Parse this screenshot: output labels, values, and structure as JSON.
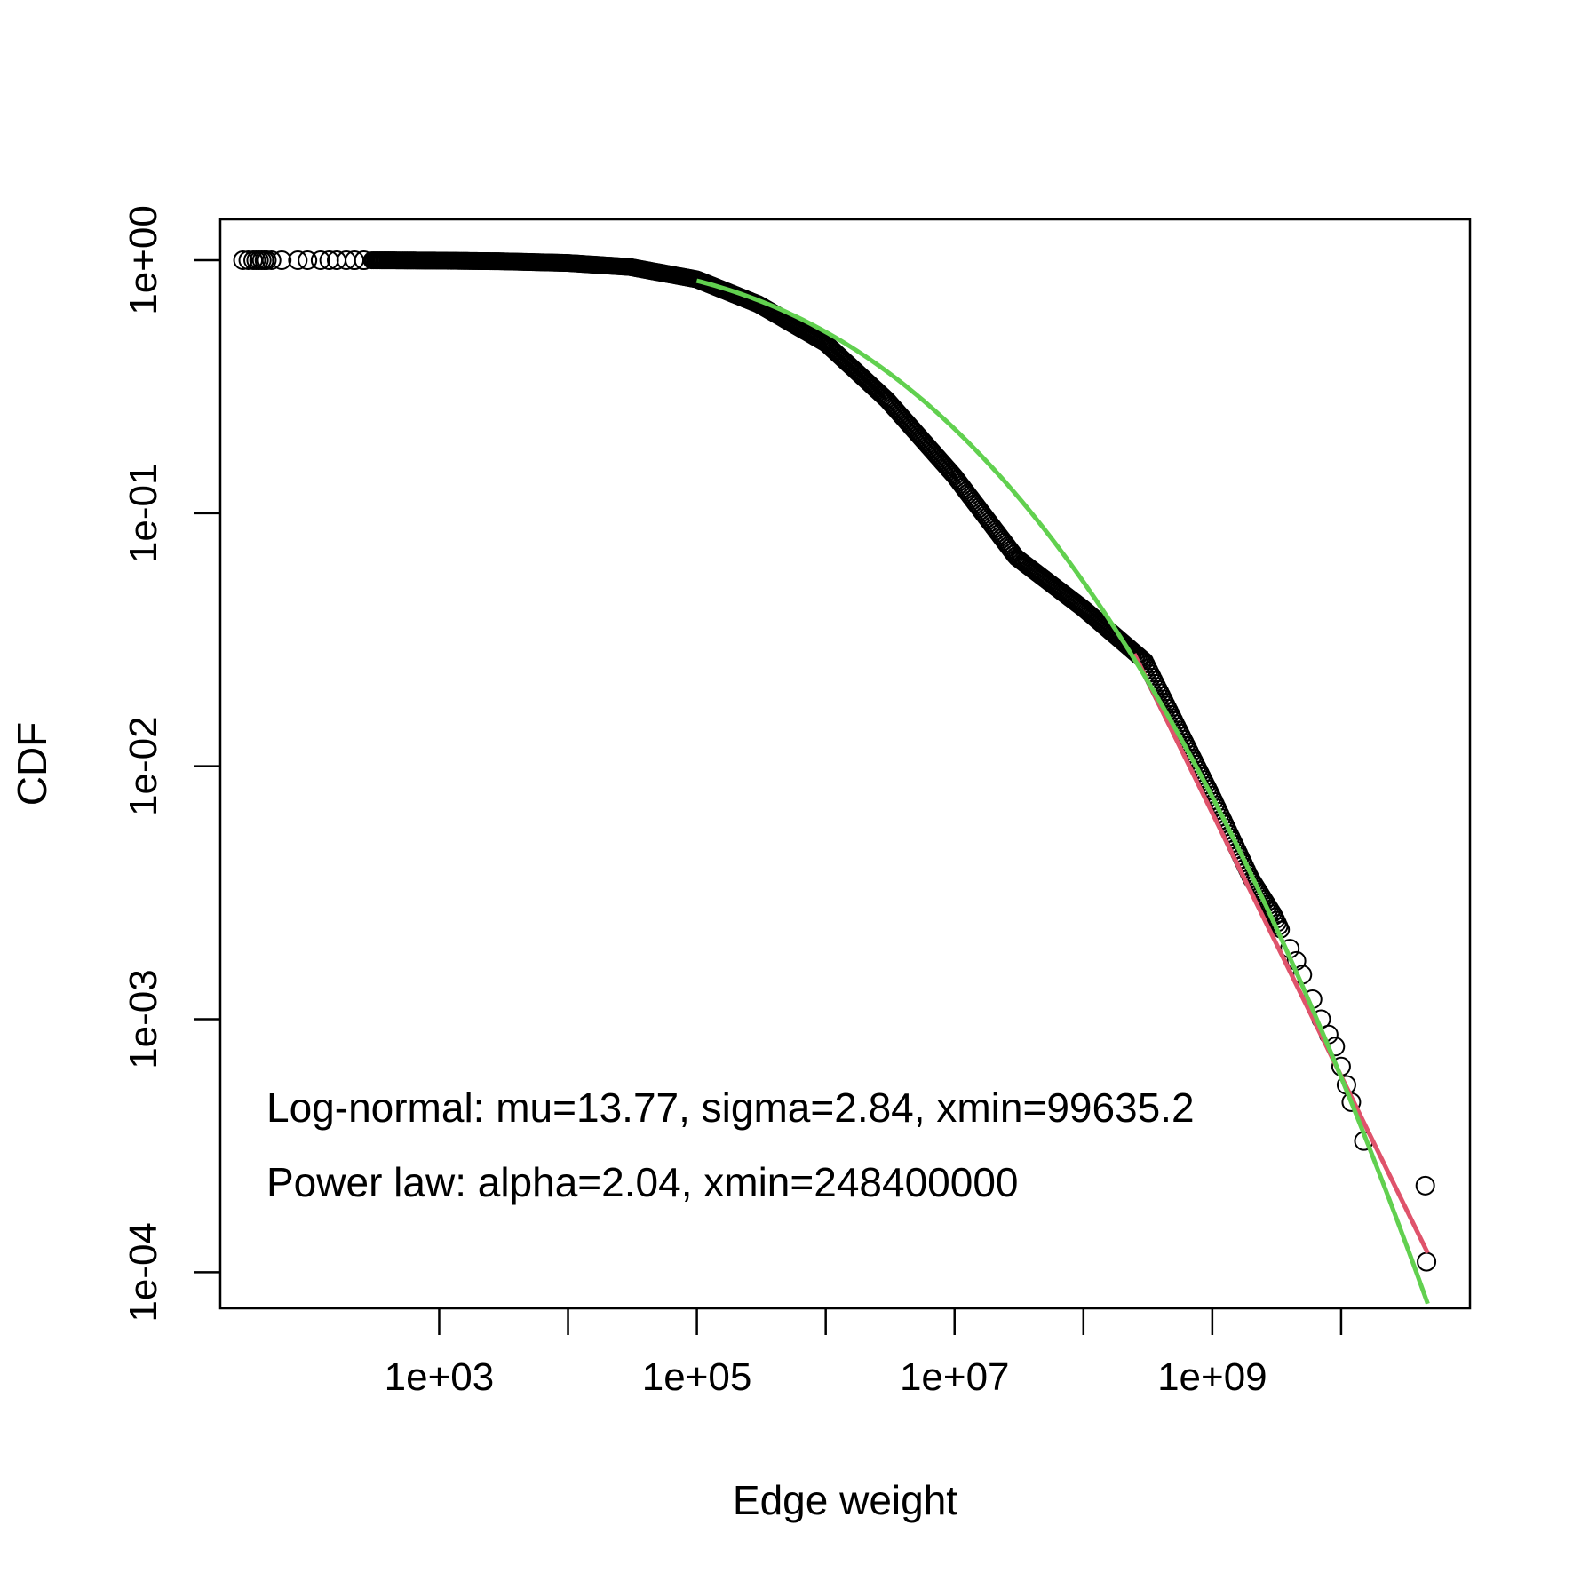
{
  "chart_data": {
    "type": "scatter",
    "xlabel": "Edge weight",
    "ylabel": "CDF",
    "x_scale": "log10",
    "y_scale": "log10",
    "xlim": [
      20,
      100000000000
    ],
    "ylim": [
      7.2e-05,
      1.45
    ],
    "x_ticks": [
      {
        "value": 1000,
        "label": "1e+03"
      },
      {
        "value": 10000,
        "label": ""
      },
      {
        "value": 100000,
        "label": "1e+05"
      },
      {
        "value": 1000000,
        "label": ""
      },
      {
        "value": 10000000,
        "label": "1e+07"
      },
      {
        "value": 100000000,
        "label": ""
      },
      {
        "value": 1000000000,
        "label": "1e+09"
      },
      {
        "value": 10000000000,
        "label": ""
      }
    ],
    "y_ticks": [
      {
        "value": 1,
        "label": "1e+00"
      },
      {
        "value": 0.1,
        "label": "1e-01"
      },
      {
        "value": 0.01,
        "label": "1e-02"
      },
      {
        "value": 0.001,
        "label": "1e-03"
      },
      {
        "value": 0.0001,
        "label": "1e-04"
      }
    ],
    "series": [
      {
        "kind": "points",
        "marker": "open-circle",
        "color": "#000000",
        "points": [
          [
            30,
            1.0
          ],
          [
            33,
            1.0
          ],
          [
            36,
            1.0
          ],
          [
            38,
            1.0
          ],
          [
            40,
            1.0
          ],
          [
            42,
            1.0
          ],
          [
            44,
            1.0
          ],
          [
            46,
            1.0
          ],
          [
            50,
            1.0
          ],
          [
            60,
            0.9999
          ],
          [
            80,
            0.9999
          ],
          [
            95,
            0.9998
          ],
          [
            120,
            0.9998
          ],
          [
            140,
            0.9997
          ],
          [
            160,
            0.9996
          ],
          [
            190,
            0.9995
          ],
          [
            220,
            0.9994
          ],
          [
            260,
            0.9993
          ],
          [
            300,
            0.9991
          ],
          [
            500,
            0.998
          ],
          [
            1000,
            0.996
          ],
          [
            3000,
            0.99
          ],
          [
            10000,
            0.975
          ],
          [
            30000,
            0.94
          ],
          [
            100000,
            0.84
          ],
          [
            300000,
            0.67
          ],
          [
            1000000,
            0.47
          ],
          [
            3000000,
            0.28
          ],
          [
            10000000,
            0.14
          ],
          [
            30000000,
            0.067
          ],
          [
            100000000,
            0.042
          ],
          [
            300000000,
            0.026
          ],
          [
            1000000000,
            0.0076
          ],
          [
            2000000000,
            0.0036
          ],
          [
            3000000000,
            0.0026
          ],
          [
            3500000000,
            0.0022
          ],
          [
            4000000000,
            0.0019
          ],
          [
            4500000000,
            0.0017
          ],
          [
            5000000000,
            0.0015
          ],
          [
            6000000000,
            0.0012
          ],
          [
            7000000000,
            0.001
          ],
          [
            8000000000,
            0.00087
          ],
          [
            9000000000,
            0.00078
          ],
          [
            10000000000,
            0.00065
          ],
          [
            11000000000,
            0.00055
          ],
          [
            12000000000,
            0.00047
          ],
          [
            15000000000,
            0.00033
          ],
          [
            45000000000,
            0.00022
          ],
          [
            46000000000,
            0.00011
          ]
        ]
      },
      {
        "kind": "line",
        "fit": "log-normal",
        "color": "#61d04f",
        "mu": 13.77,
        "sigma": 2.84,
        "xmin": 99635.2,
        "x_range": [
          99635.2,
          47000000000
        ],
        "y_at_xmin": 0.83
      },
      {
        "kind": "line",
        "fit": "power-law",
        "color": "#df536b",
        "alpha": 2.04,
        "xmin": 248400000,
        "x_range": [
          248400000,
          47000000000
        ],
        "y_at_xmin": 0.0278
      }
    ],
    "annotations": [
      "Log-normal: mu=13.77, sigma=2.84, xmin=99635.2",
      "Power law: alpha=2.04, xmin=248400000"
    ],
    "grid": false,
    "legend": "none"
  }
}
